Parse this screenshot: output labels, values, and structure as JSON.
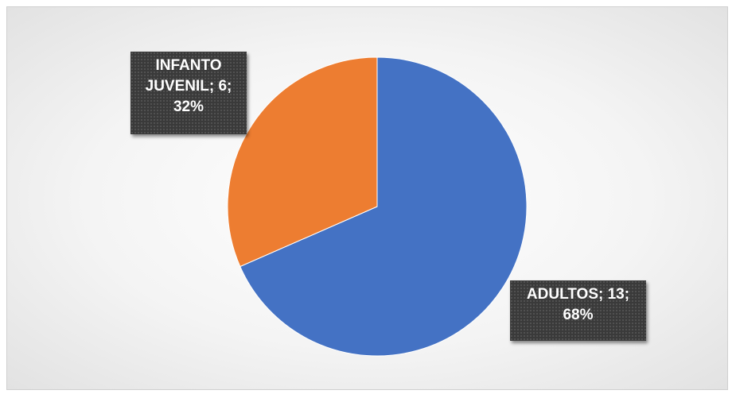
{
  "chart_data": {
    "type": "pie",
    "slices": [
      {
        "category": "ADULTOS",
        "value": 13,
        "percent": "68%",
        "color": "#4472C4"
      },
      {
        "category": "INFANTO JUVENIL",
        "value": 6,
        "percent": "32%",
        "color": "#ED7D31"
      }
    ],
    "labels": {
      "infanto": {
        "line1": "INFANTO",
        "line2": "JUVENIL; 6;",
        "line3": "32%"
      },
      "adultos": {
        "line1": "ADULTOS; 13;",
        "line2": "68%"
      }
    },
    "title": ""
  }
}
